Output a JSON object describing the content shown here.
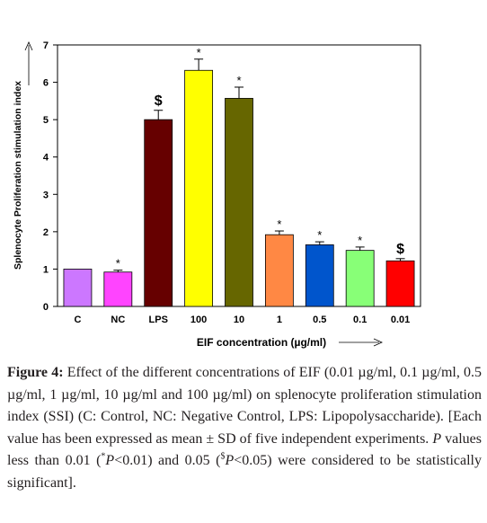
{
  "chart_data": {
    "type": "bar",
    "categories": [
      "C",
      "NC",
      "LPS",
      "100",
      "10",
      "1",
      "0.5",
      "0.1",
      "0.01"
    ],
    "values": [
      1.0,
      0.92,
      5.0,
      6.32,
      5.57,
      1.92,
      1.65,
      1.5,
      1.22
    ],
    "errors": [
      0.0,
      0.05,
      0.25,
      0.3,
      0.3,
      0.1,
      0.08,
      0.09,
      0.06
    ],
    "markers": [
      "",
      "*",
      "$",
      "*",
      "*",
      "*",
      "*",
      "*",
      "$"
    ],
    "colors": [
      "#cc77ff",
      "#ff44ff",
      "#660000",
      "#ffff00",
      "#666600",
      "#ff8844",
      "#0055cc",
      "#88ff77",
      "#ff0000"
    ],
    "xlabel": "EIF concentration (µg/ml)",
    "ylabel": "Splenocyte Proliferation stimulation index",
    "ylim": [
      0,
      7
    ],
    "yticks": [
      "0",
      "1",
      "2",
      "3",
      "4",
      "5",
      "6",
      "7"
    ],
    "grid": false
  },
  "caption": {
    "label": "Figure 4:",
    "part1": " Effect of the different concentrations of EIF (0.01 µg/ml, 0.1 µg/ml, 0.5 µg/ml, 1 µg/ml, 10 µg/ml and 100 µg/ml) on splenocyte proliferation stimulation index (SSI) (C: Control, NC: Negative Control, LPS: Lipopolysaccharide). [Each value has been expressed as mean ± SD of five independent experiments. ",
    "p_italic": "P",
    "part2": " values less than 0.01 (",
    "sup_star": "*",
    "p_star": "P",
    "part3": "<0.01) and 0.05 (",
    "sup_dollar": "$",
    "p_dollar": "P",
    "part4": "<0.05) were considered to be statistically significant]."
  }
}
